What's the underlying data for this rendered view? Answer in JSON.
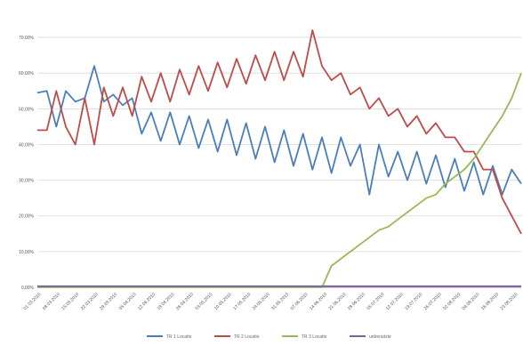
{
  "chart_data": {
    "type": "line",
    "title": "",
    "xlabel": "",
    "ylabel": "",
    "ylim": [
      0,
      75
    ],
    "y_ticks": [
      "0,00%",
      "10,00%",
      "20,00%",
      "30,00%",
      "40,00%",
      "50,00%",
      "60,00%",
      "70,00%"
    ],
    "y_tick_values": [
      0,
      10,
      20,
      30,
      40,
      50,
      60,
      70
    ],
    "x_tick_labels": [
      "01.03.2010",
      "08.03.2010",
      "15.03.2010",
      "22.03.2010",
      "29.03.2010",
      "05.04.2010",
      "12.04.2010",
      "19.04.2010",
      "26.04.2010",
      "03.05.2010",
      "10.05.2010",
      "17.05.2010",
      "24.05.2010",
      "31.05.2010",
      "07.06.2010",
      "14.06.2010",
      "21.06.2010",
      "28.06.2010",
      "05.07.2010",
      "12.07.2010",
      "19.07.2010",
      "26.07.2010",
      "02.08.2010",
      "09.08.2010",
      "16.08.2010",
      "23.08.2010"
    ],
    "grid": true,
    "legend_position": "bottom",
    "series": [
      {
        "name": "TR 1 Locatio",
        "color": "#4a7ebb",
        "values": [
          54.5,
          55,
          45,
          55,
          52,
          53,
          62,
          52,
          54,
          51,
          53,
          43,
          49,
          41,
          49,
          40,
          48,
          39,
          47,
          38,
          47,
          37,
          46,
          36,
          45,
          35,
          44,
          34,
          43,
          33,
          42,
          32,
          42,
          34,
          40,
          26,
          40,
          31,
          38,
          30,
          38,
          29,
          37,
          28,
          36,
          27,
          35,
          26,
          34,
          26,
          33,
          29
        ]
      },
      {
        "name": "TR 2 Locatio",
        "color": "#be4b48",
        "values": [
          44,
          44,
          55,
          45,
          40,
          53,
          40,
          56,
          48,
          56,
          48,
          59,
          52,
          60,
          52,
          61,
          54,
          62,
          55,
          63,
          56,
          64,
          57,
          65,
          58,
          66,
          58,
          66,
          59,
          72,
          62,
          58,
          60,
          54,
          56,
          50,
          53,
          48,
          50,
          45,
          48,
          43,
          46,
          42,
          42,
          38,
          38,
          33,
          33,
          25,
          20,
          15
        ]
      },
      {
        "name": "TR 3 Locatio",
        "color": "#98b954",
        "values": [
          0,
          0,
          0,
          0,
          0,
          0,
          0,
          0,
          0,
          0,
          0,
          0,
          0,
          0,
          0,
          0,
          0,
          0,
          0,
          0,
          0,
          0,
          0,
          0,
          0,
          0,
          0,
          0,
          0,
          0,
          0,
          6,
          8,
          10,
          12,
          14,
          16,
          17,
          19,
          21,
          23,
          25,
          26,
          29,
          31,
          33,
          36,
          40,
          44,
          48,
          53,
          60
        ]
      },
      {
        "name": "unbenutzte",
        "color": "#7d60a0",
        "values": [
          0.3,
          0.3,
          0.3,
          0.3,
          0.3,
          0.3,
          0.3,
          0.3,
          0.3,
          0.3,
          0.3,
          0.3,
          0.3,
          0.3,
          0.3,
          0.3,
          0.3,
          0.3,
          0.3,
          0.3,
          0.3,
          0.3,
          0.3,
          0.3,
          0.3,
          0.3,
          0.3,
          0.3,
          0.3,
          0.3,
          0.3,
          0.3,
          0.3,
          0.3,
          0.3,
          0.3,
          0.3,
          0.3,
          0.3,
          0.3,
          0.3,
          0.3,
          0.3,
          0.3,
          0.3,
          0.3,
          0.3,
          0.3,
          0.3,
          0.3,
          0.3,
          0.3
        ]
      }
    ]
  }
}
